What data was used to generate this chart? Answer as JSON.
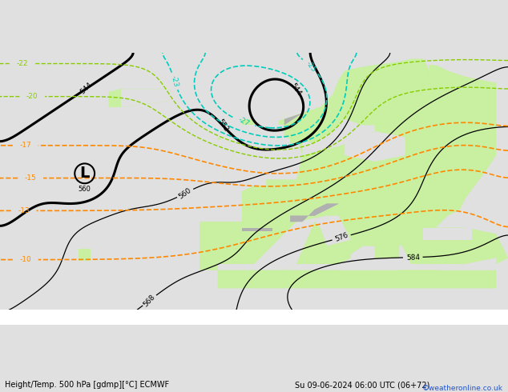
{
  "title_left": "Height/Temp. 500 hPa [gdmp][°C] ECMWF",
  "title_right": "Su 09-06-2024 06:00 UTC (06+72)",
  "watermark": "©weatheronline.co.uk",
  "land_color": "#c8f0a0",
  "highland_color": "#b0b0b0",
  "sea_color": "#e0e0e0",
  "fig_bg": "#e0e0e0",
  "fig_width": 6.34,
  "fig_height": 4.9,
  "dpi": 100,
  "lon_min": -42,
  "lon_max": 42,
  "lat_min": 27,
  "lat_max": 72
}
